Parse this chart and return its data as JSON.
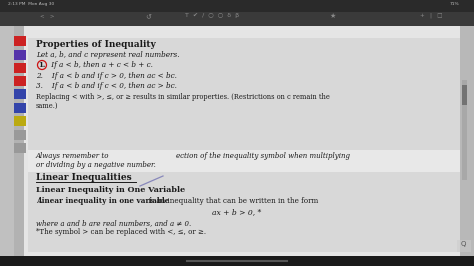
{
  "bg_outer": "#1a1a1a",
  "bg_toolbar_top": "#2d2d2d",
  "bg_toolbar2": "#3a3a3a",
  "bg_main": "#c8c8c8",
  "bg_content": "#e2e2e2",
  "bg_section_gray": "#d5d5d5",
  "bg_white_mid": "#ebebeb",
  "text_dark": "#1a1a1a",
  "text_gray": "#cccccc",
  "sidebar_bg": "#b5b5b5",
  "tab_colors": [
    "#cc2222",
    "#5533aa",
    "#cc2222",
    "#cc2222",
    "#3344aa",
    "#3344aa",
    "#bbaa11",
    "#999999",
    "#999999"
  ],
  "circle_color": "#cc1111",
  "line_color": "#8888bb",
  "scroll_color": "#888888",
  "title1": "Properties of Inequality",
  "sub1": "Let a, b, and c represent real numbers.",
  "item1_num": "1.",
  "item1_text": " If a < b, then a + c < b + c.",
  "item2": "2.    If a < b and if c > 0, then ac < bc.",
  "item3": "3.    If a < b and if c < 0, then ac > bc.",
  "note1": "Replacing < with >, ≤, or ≥ results in similar properties. (Restrictions on c remain the",
  "note2": "same.)",
  "italic1": "Always remember to                              ection of the inequality symbol when multiplying",
  "italic2": "or dividing by a negative number.",
  "title2": "Linear Inequalities",
  "sub2": "Linear Inequality in One Variable",
  "def1a": "A ",
  "def1b": "linear inequality in one variable",
  "def1c": " is an inequality that can be written in the form",
  "formula": "ax + b > 0, *",
  "def2": "where a and b are real numbers, and a ≠ 0.",
  "def3": "*The symbol > can be replaced with <, ≤, or ≥.",
  "status_left": "2:13 PM  Mon Aug 30",
  "status_right": "71%"
}
